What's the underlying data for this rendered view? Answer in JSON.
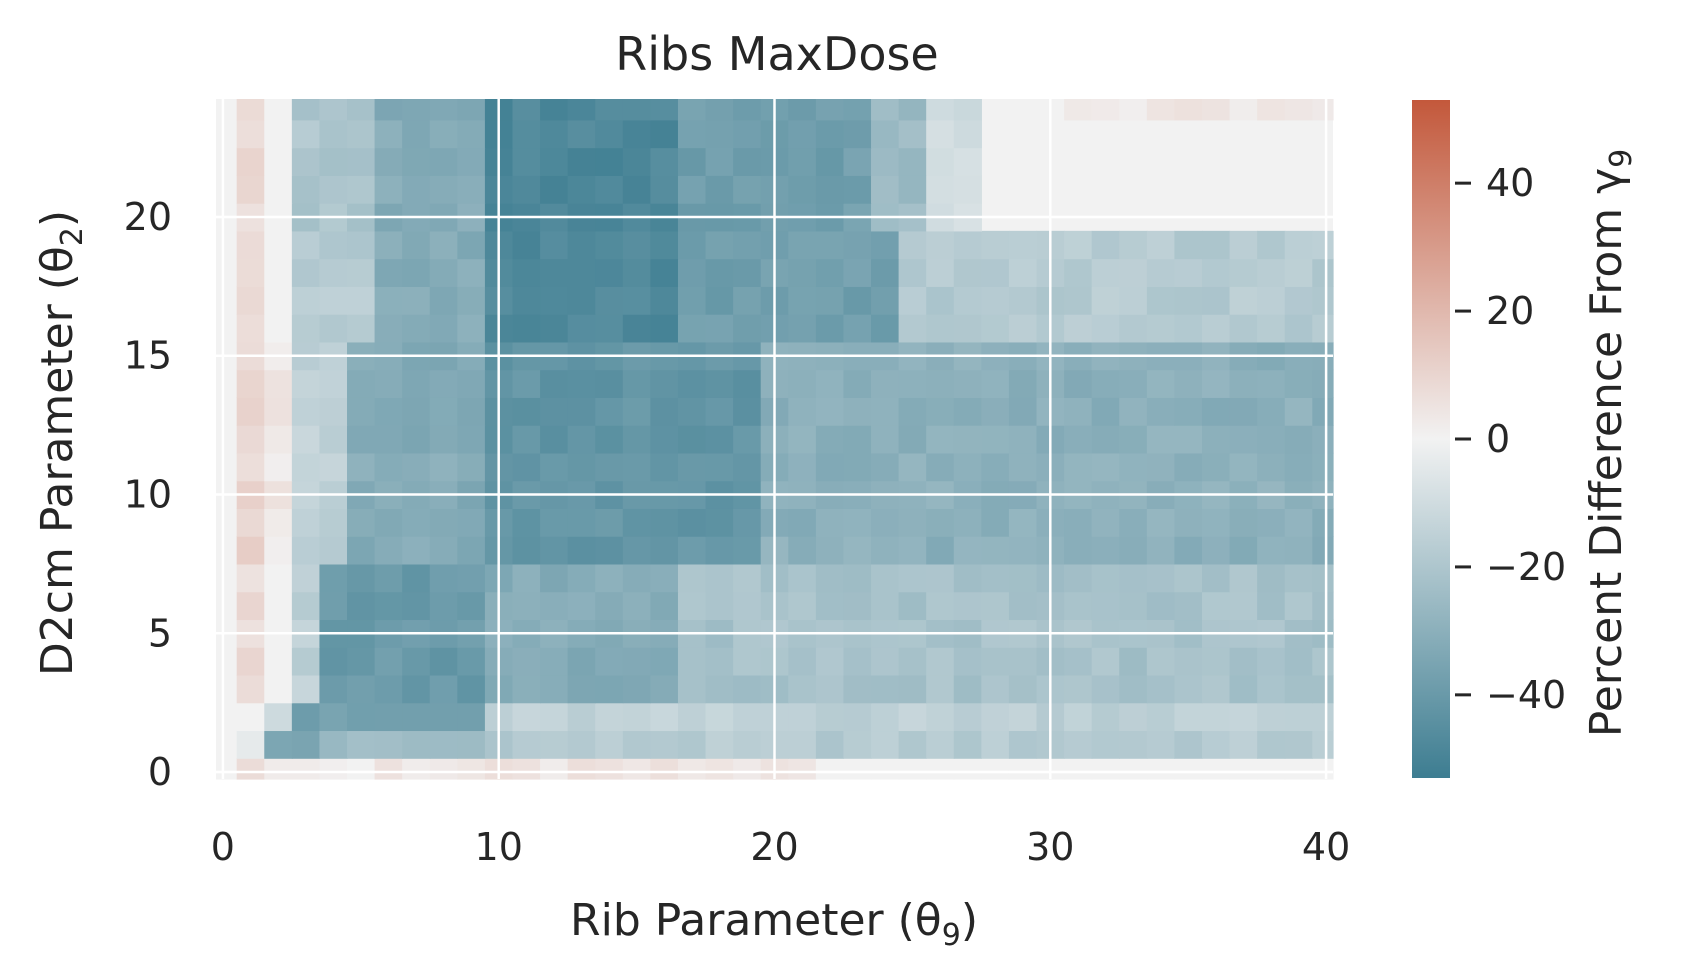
{
  "chart_data": {
    "type": "heatmap",
    "title": "Ribs MaxDose",
    "xlabel": "Rib Parameter (θ",
    "xlabel_sub": "9",
    "xlabel_end": ")",
    "ylabel": "D2cm Parameter (θ",
    "ylabel_sub": "2",
    "ylabel_end": ")",
    "colorbar_label": "Percent Difference From γ",
    "colorbar_label_sub": "9",
    "xlim": [
      -0.25,
      40.25
    ],
    "ylim": [
      -0.25,
      24.25
    ],
    "xticks": [
      0,
      10,
      20,
      30,
      40
    ],
    "xtick_labels": [
      "0",
      "10",
      "20",
      "30",
      "40"
    ],
    "yticks": [
      0,
      5,
      10,
      15,
      20
    ],
    "ytick_labels": [
      "0",
      "5",
      "10",
      "15",
      "20"
    ],
    "colorbar_range": [
      -53,
      53
    ],
    "colorbar_ticks": [
      40,
      20,
      0,
      -20,
      -40
    ],
    "colorbar_tick_labels": [
      "40",
      "20",
      "0",
      "−20",
      "−40"
    ],
    "colormap": {
      "low": "#3d7d91",
      "mid": "#f2f2f2",
      "high": "#c3583b"
    },
    "grid": true,
    "grid_color": "#ffffff",
    "background": "#f2f2f2",
    "x_bins": 41,
    "y_bins": 25,
    "regions": [
      {
        "x": [
          0,
          40
        ],
        "y": [
          0,
          0
        ],
        "value": 0
      },
      {
        "x": [
          1,
          2
        ],
        "y": [
          0,
          0
        ],
        "value": 5
      },
      {
        "x": [
          3,
          4
        ],
        "y": [
          0,
          0
        ],
        "value": 2
      },
      {
        "x": [
          6,
          6
        ],
        "y": [
          0,
          0
        ],
        "value": 5
      },
      {
        "x": [
          7,
          21
        ],
        "y": [
          0,
          0
        ],
        "value": 4
      },
      {
        "x": [
          1,
          1
        ],
        "y": [
          1,
          1
        ],
        "value": -5
      },
      {
        "x": [
          2,
          40
        ],
        "y": [
          1,
          1
        ],
        "value": -18
      },
      {
        "x": [
          2,
          3
        ],
        "y": [
          1,
          1
        ],
        "value": -35
      },
      {
        "x": [
          4,
          9
        ],
        "y": [
          1,
          1
        ],
        "value": -25
      },
      {
        "x": [
          1,
          1
        ],
        "y": [
          2,
          2
        ],
        "value": 0
      },
      {
        "x": [
          2,
          2
        ],
        "y": [
          2,
          2
        ],
        "value": -10
      },
      {
        "x": [
          3,
          9
        ],
        "y": [
          2,
          2
        ],
        "value": -38
      },
      {
        "x": [
          10,
          40
        ],
        "y": [
          2,
          2
        ],
        "value": -15
      },
      {
        "x": [
          1,
          1
        ],
        "y": [
          3,
          7
        ],
        "value": 8
      },
      {
        "x": [
          2,
          2
        ],
        "y": [
          3,
          7
        ],
        "value": 0
      },
      {
        "x": [
          3,
          3
        ],
        "y": [
          3,
          7
        ],
        "value": -15
      },
      {
        "x": [
          4,
          9
        ],
        "y": [
          3,
          7
        ],
        "value": -40
      },
      {
        "x": [
          10,
          16
        ],
        "y": [
          3,
          7
        ],
        "value": -32
      },
      {
        "x": [
          17,
          40
        ],
        "y": [
          3,
          7
        ],
        "value": -22
      },
      {
        "x": [
          1,
          1
        ],
        "y": [
          8,
          15
        ],
        "value": 10
      },
      {
        "x": [
          2,
          2
        ],
        "y": [
          8,
          15
        ],
        "value": 3
      },
      {
        "x": [
          3,
          4
        ],
        "y": [
          8,
          15
        ],
        "value": -15
      },
      {
        "x": [
          5,
          9
        ],
        "y": [
          8,
          15
        ],
        "value": -32
      },
      {
        "x": [
          10,
          19
        ],
        "y": [
          8,
          15
        ],
        "value": -42
      },
      {
        "x": [
          20,
          40
        ],
        "y": [
          8,
          15
        ],
        "value": -30
      },
      {
        "x": [
          1,
          1
        ],
        "y": [
          16,
          19
        ],
        "value": 8
      },
      {
        "x": [
          2,
          2
        ],
        "y": [
          16,
          19
        ],
        "value": 0
      },
      {
        "x": [
          3,
          5
        ],
        "y": [
          16,
          19
        ],
        "value": -18
      },
      {
        "x": [
          6,
          9
        ],
        "y": [
          16,
          19
        ],
        "value": -32
      },
      {
        "x": [
          10,
          16
        ],
        "y": [
          16,
          19
        ],
        "value": -48
      },
      {
        "x": [
          17,
          24
        ],
        "y": [
          16,
          19
        ],
        "value": -38
      },
      {
        "x": [
          25,
          40
        ],
        "y": [
          16,
          19
        ],
        "value": -18
      },
      {
        "x": [
          1,
          1
        ],
        "y": [
          20,
          24
        ],
        "value": 8
      },
      {
        "x": [
          2,
          2
        ],
        "y": [
          20,
          24
        ],
        "value": 0
      },
      {
        "x": [
          3,
          5
        ],
        "y": [
          20,
          24
        ],
        "value": -20
      },
      {
        "x": [
          6,
          9
        ],
        "y": [
          20,
          24
        ],
        "value": -32
      },
      {
        "x": [
          10,
          16
        ],
        "y": [
          20,
          24
        ],
        "value": -48
      },
      {
        "x": [
          17,
          23
        ],
        "y": [
          20,
          24
        ],
        "value": -38
      },
      {
        "x": [
          24,
          25
        ],
        "y": [
          20,
          24
        ],
        "value": -25
      },
      {
        "x": [
          26,
          27
        ],
        "y": [
          20,
          24
        ],
        "value": -10
      },
      {
        "x": [
          31,
          40
        ],
        "y": [
          24,
          24
        ],
        "value": 3
      }
    ]
  }
}
